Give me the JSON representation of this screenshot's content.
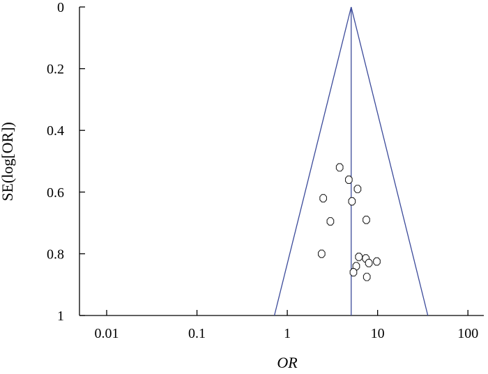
{
  "chart_data": {
    "type": "scatter",
    "title": "",
    "xlabel": "OR",
    "ylabel": "SE(log[OR])",
    "x_scale": "log",
    "xlim": [
      0.005,
      150
    ],
    "ylim": [
      0,
      1
    ],
    "y_inverted": true,
    "x_ticks": [
      0.01,
      0.1,
      1,
      10,
      100
    ],
    "x_tick_labels": [
      "0.01",
      "0.1",
      "1",
      "10",
      "100"
    ],
    "y_ticks": [
      0,
      0.2,
      0.4,
      0.6,
      0.8,
      1
    ],
    "y_tick_labels": [
      "0",
      "0.2",
      "0.4",
      "0.6",
      "0.8",
      "1"
    ],
    "grid": false,
    "legend": "none",
    "pooled_or": 5.1,
    "funnel": {
      "apex_se": 0,
      "bottom_se": 1,
      "lower_or_at_bottom": 0.72,
      "upper_or_at_bottom": 36
    },
    "colors": {
      "funnel": "#3b4a9a",
      "axis": "#000000",
      "point_edge": "#222222"
    },
    "points": [
      {
        "x": 3.8,
        "y": 0.52
      },
      {
        "x": 4.8,
        "y": 0.56
      },
      {
        "x": 6.0,
        "y": 0.59
      },
      {
        "x": 2.5,
        "y": 0.62
      },
      {
        "x": 5.2,
        "y": 0.63
      },
      {
        "x": 3.0,
        "y": 0.695
      },
      {
        "x": 7.5,
        "y": 0.69
      },
      {
        "x": 2.4,
        "y": 0.8
      },
      {
        "x": 6.2,
        "y": 0.81
      },
      {
        "x": 7.4,
        "y": 0.815
      },
      {
        "x": 9.8,
        "y": 0.825
      },
      {
        "x": 8.0,
        "y": 0.83
      },
      {
        "x": 5.8,
        "y": 0.84
      },
      {
        "x": 5.4,
        "y": 0.86
      },
      {
        "x": 7.6,
        "y": 0.875
      }
    ]
  }
}
